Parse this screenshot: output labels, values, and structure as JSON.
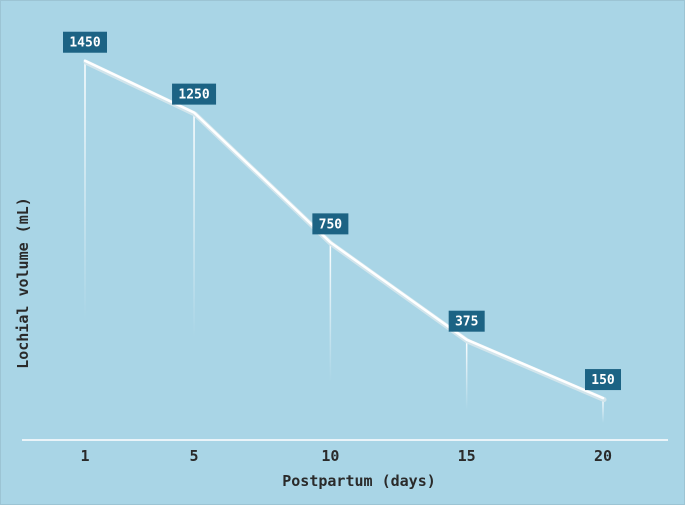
{
  "chart_data": {
    "type": "line",
    "x": [
      1,
      5,
      10,
      15,
      20
    ],
    "categories": [
      "1",
      "5",
      "10",
      "15",
      "20"
    ],
    "series": [
      {
        "values": [
          1450,
          1250,
          750,
          375,
          150
        ]
      }
    ],
    "data_labels": [
      "1450",
      "1250",
      "750",
      "375",
      "150"
    ],
    "xlabel": "Postpartum (days)",
    "ylabel": "Lochial volume (mL)",
    "ylim": [
      0,
      1600
    ],
    "grid": false,
    "legend": "none"
  },
  "colors": {
    "background": "#a9d5e6",
    "line": "#ffffff",
    "label_fill": "#1c6384",
    "axis": "#ffffff",
    "text": "#2a2a2a"
  }
}
